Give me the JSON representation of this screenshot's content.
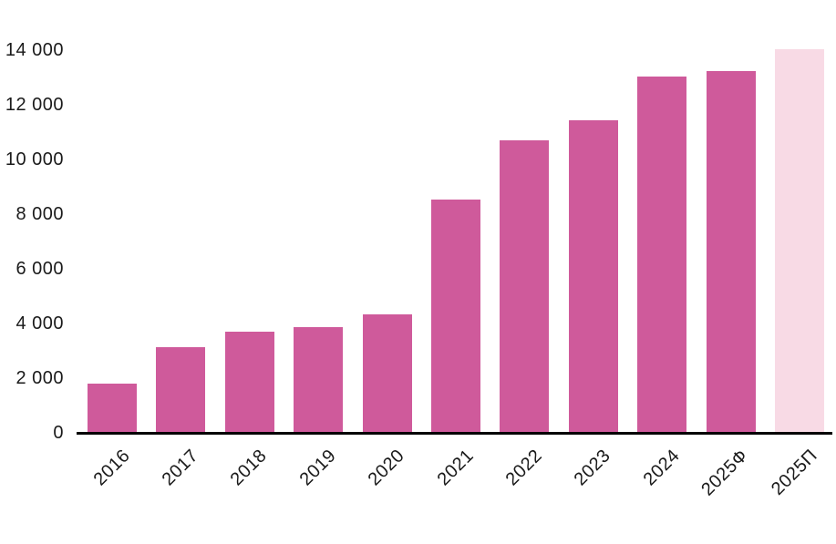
{
  "chart_data": {
    "type": "bar",
    "title": "",
    "xlabel": "",
    "ylabel": "",
    "categories": [
      "2016",
      "2017",
      "2018",
      "2019",
      "2020",
      "2021",
      "2022",
      "2023",
      "2024",
      "2025Ф",
      "2025П"
    ],
    "values": [
      1800,
      3150,
      3700,
      3870,
      4340,
      8540,
      10700,
      11450,
      13050,
      13250,
      14050
    ],
    "bar_colors": [
      "#cf5a9b",
      "#cf5a9b",
      "#cf5a9b",
      "#cf5a9b",
      "#cf5a9b",
      "#cf5a9b",
      "#cf5a9b",
      "#cf5a9b",
      "#cf5a9b",
      "#cf5a9b",
      "#f8dae5"
    ],
    "ylim": [
      0,
      14000
    ],
    "yticks": [
      0,
      2000,
      4000,
      6000,
      8000,
      10000,
      12000,
      14000
    ],
    "ytick_labels": [
      "0",
      "2 000",
      "4 000",
      "6 000",
      "8 000",
      "10 000",
      "12 000",
      "14 000"
    ],
    "xtick_rotation_deg": 45,
    "grid": false,
    "legend": null,
    "axis_color": "#000000",
    "text_color": "#1a1a1a"
  }
}
